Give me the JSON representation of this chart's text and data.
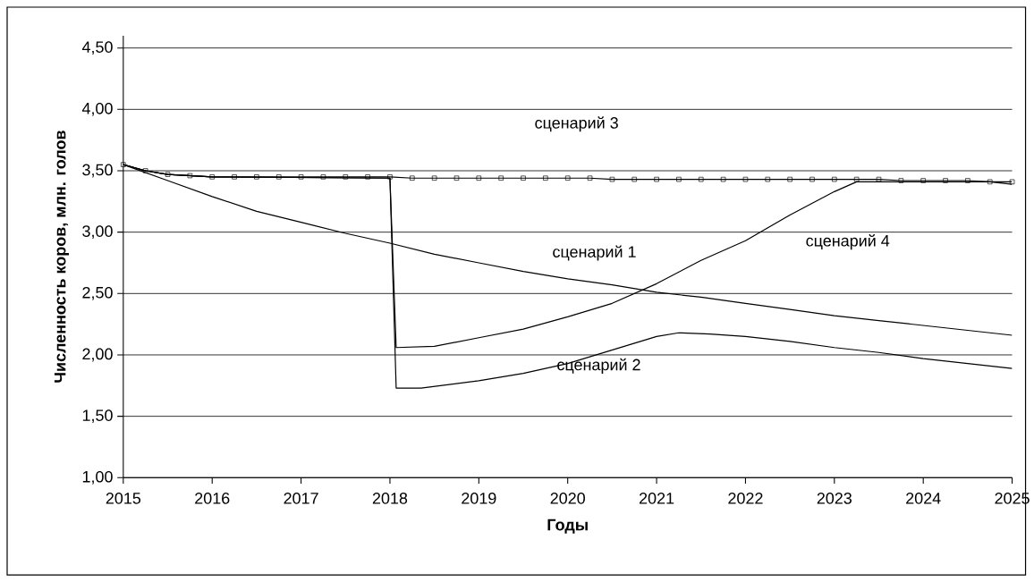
{
  "chart_data": {
    "type": "line",
    "xlabel": "Годы",
    "ylabel": "Численность коров, млн. голов",
    "xlim": [
      2015,
      2025
    ],
    "ylim": [
      1.0,
      4.6
    ],
    "xticks": [
      2015,
      2016,
      2017,
      2018,
      2019,
      2020,
      2021,
      2022,
      2023,
      2024,
      2025
    ],
    "yticks": [
      {
        "value": 1.0,
        "label": "1,00"
      },
      {
        "value": 1.5,
        "label": "1,50"
      },
      {
        "value": 2.0,
        "label": "2,00"
      },
      {
        "value": 2.5,
        "label": "2,50"
      },
      {
        "value": 3.0,
        "label": "3,00"
      },
      {
        "value": 3.5,
        "label": "3,50"
      },
      {
        "value": 4.0,
        "label": "4,00"
      },
      {
        "value": 4.5,
        "label": "4,50"
      }
    ],
    "grid": "y",
    "legend": false,
    "series": [
      {
        "name": "сценарий 1",
        "color": "#000000",
        "marker": "none",
        "x": [
          2015,
          2015.5,
          2016,
          2016.5,
          2017,
          2017.5,
          2018,
          2018.5,
          2019,
          2019.5,
          2020,
          2020.5,
          2021,
          2021.5,
          2022,
          2022.5,
          2023,
          2023.5,
          2024,
          2024.5,
          2025
        ],
        "values": [
          3.55,
          3.42,
          3.29,
          3.17,
          3.08,
          2.99,
          2.91,
          2.82,
          2.75,
          2.68,
          2.62,
          2.57,
          2.51,
          2.47,
          2.42,
          2.37,
          2.32,
          2.28,
          2.24,
          2.2,
          2.16
        ]
      },
      {
        "name": "сценарий 2",
        "color": "#000000",
        "marker": "none",
        "x": [
          2015,
          2015.25,
          2015.5,
          2016,
          2018,
          2018.07,
          2018.35,
          2019,
          2019.5,
          2020,
          2020.5,
          2021,
          2021.25,
          2021.6,
          2022,
          2022.5,
          2023,
          2023.5,
          2024,
          2024.5,
          2025
        ],
        "values": [
          3.55,
          3.5,
          3.47,
          3.45,
          3.44,
          1.73,
          1.73,
          1.79,
          1.85,
          1.93,
          2.04,
          2.15,
          2.18,
          2.17,
          2.15,
          2.11,
          2.06,
          2.02,
          1.97,
          1.93,
          1.89
        ]
      },
      {
        "name": "сценарий 3",
        "color": "#000000",
        "marker": "square",
        "x": [
          2015,
          2015.25,
          2015.5,
          2015.75,
          2016,
          2016.25,
          2016.5,
          2016.75,
          2017,
          2017.25,
          2017.5,
          2017.75,
          2018,
          2018.25,
          2018.5,
          2018.75,
          2019,
          2019.25,
          2019.5,
          2019.75,
          2020,
          2020.25,
          2020.5,
          2020.75,
          2021,
          2021.25,
          2021.5,
          2021.75,
          2022,
          2022.25,
          2022.5,
          2022.75,
          2023,
          2023.25,
          2023.5,
          2023.75,
          2024,
          2024.25,
          2024.5,
          2024.75,
          2025
        ],
        "values": [
          3.55,
          3.5,
          3.47,
          3.46,
          3.45,
          3.45,
          3.45,
          3.45,
          3.45,
          3.45,
          3.45,
          3.45,
          3.45,
          3.44,
          3.44,
          3.44,
          3.44,
          3.44,
          3.44,
          3.44,
          3.44,
          3.44,
          3.43,
          3.43,
          3.43,
          3.43,
          3.43,
          3.43,
          3.43,
          3.43,
          3.43,
          3.43,
          3.43,
          3.43,
          3.43,
          3.42,
          3.42,
          3.42,
          3.42,
          3.41,
          3.41
        ]
      },
      {
        "name": "сценарий 4",
        "color": "#000000",
        "marker": "none",
        "x": [
          2015,
          2015.25,
          2015.5,
          2016,
          2018,
          2018.07,
          2018.5,
          2019,
          2019.5,
          2020,
          2020.5,
          2021,
          2021.5,
          2022,
          2022.5,
          2023,
          2023.25,
          2024.75,
          2025
        ],
        "values": [
          3.55,
          3.5,
          3.47,
          3.45,
          3.44,
          2.06,
          2.07,
          2.14,
          2.21,
          2.31,
          2.42,
          2.58,
          2.77,
          2.93,
          3.14,
          3.33,
          3.41,
          3.41,
          3.39
        ]
      }
    ]
  }
}
